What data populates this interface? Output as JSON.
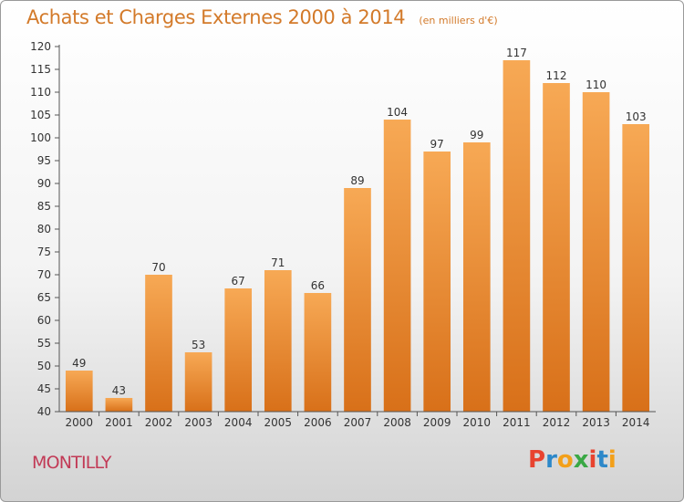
{
  "chart_data": {
    "type": "bar",
    "title": "Achats et Charges Externes 2000 à 2014",
    "subtitle": "(en milliers d'€)",
    "categories": [
      "2000",
      "2001",
      "2002",
      "2003",
      "2004",
      "2005",
      "2006",
      "2007",
      "2008",
      "2009",
      "2010",
      "2011",
      "2012",
      "2013",
      "2014"
    ],
    "values": [
      49,
      43,
      70,
      53,
      67,
      71,
      66,
      89,
      104,
      97,
      99,
      117,
      112,
      110,
      103
    ],
    "ylim": [
      40,
      120
    ],
    "yticks": [
      40,
      45,
      50,
      55,
      60,
      65,
      70,
      75,
      80,
      85,
      90,
      95,
      100,
      105,
      110,
      115,
      120
    ],
    "grid": false,
    "bar_color_top": "#f7a955",
    "bar_color_bottom": "#d87019"
  },
  "footer": {
    "commune": "MONTILLY",
    "brand": "Proxiti",
    "brand_colors": [
      "#e8432f",
      "#2d88c9",
      "#f3a01a",
      "#3aa845",
      "#e8432f",
      "#2d88c9",
      "#f3a01a"
    ]
  }
}
